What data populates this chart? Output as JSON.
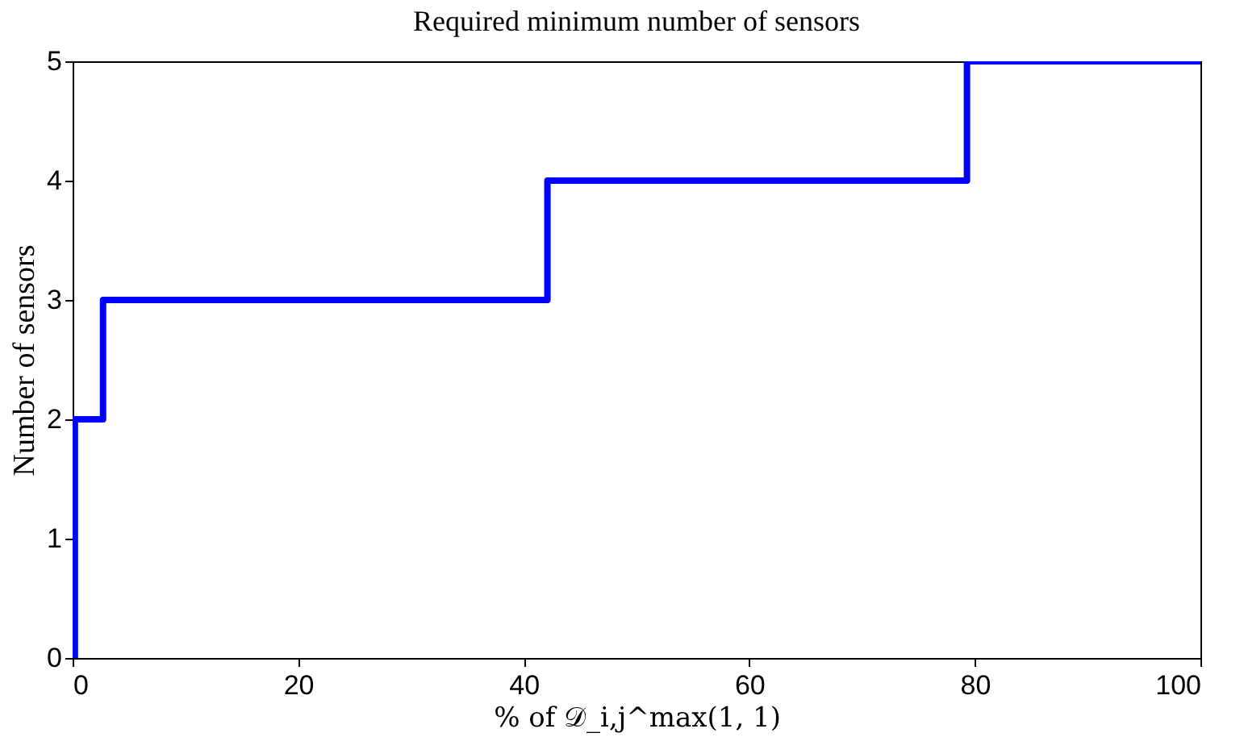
{
  "chart_data": {
    "type": "step",
    "title": "Required minimum number of sensors",
    "xlabel": "% of 𝒟_i,j^max(1, 1)",
    "ylabel": "Number of sensors",
    "x": [
      0,
      0.2,
      2.7,
      42.1,
      79.3,
      100
    ],
    "series": [
      {
        "color": "#0000ff",
        "values": [
          0,
          2,
          3,
          4,
          5,
          5
        ]
      }
    ],
    "xlim": [
      0,
      100
    ],
    "xticks": [
      0,
      20,
      40,
      60,
      80,
      100
    ],
    "ylim": [
      0,
      5
    ],
    "yticks": [
      0,
      1,
      2,
      3,
      4,
      5
    ],
    "grid": false,
    "marker": "none",
    "line_style": "solid"
  }
}
